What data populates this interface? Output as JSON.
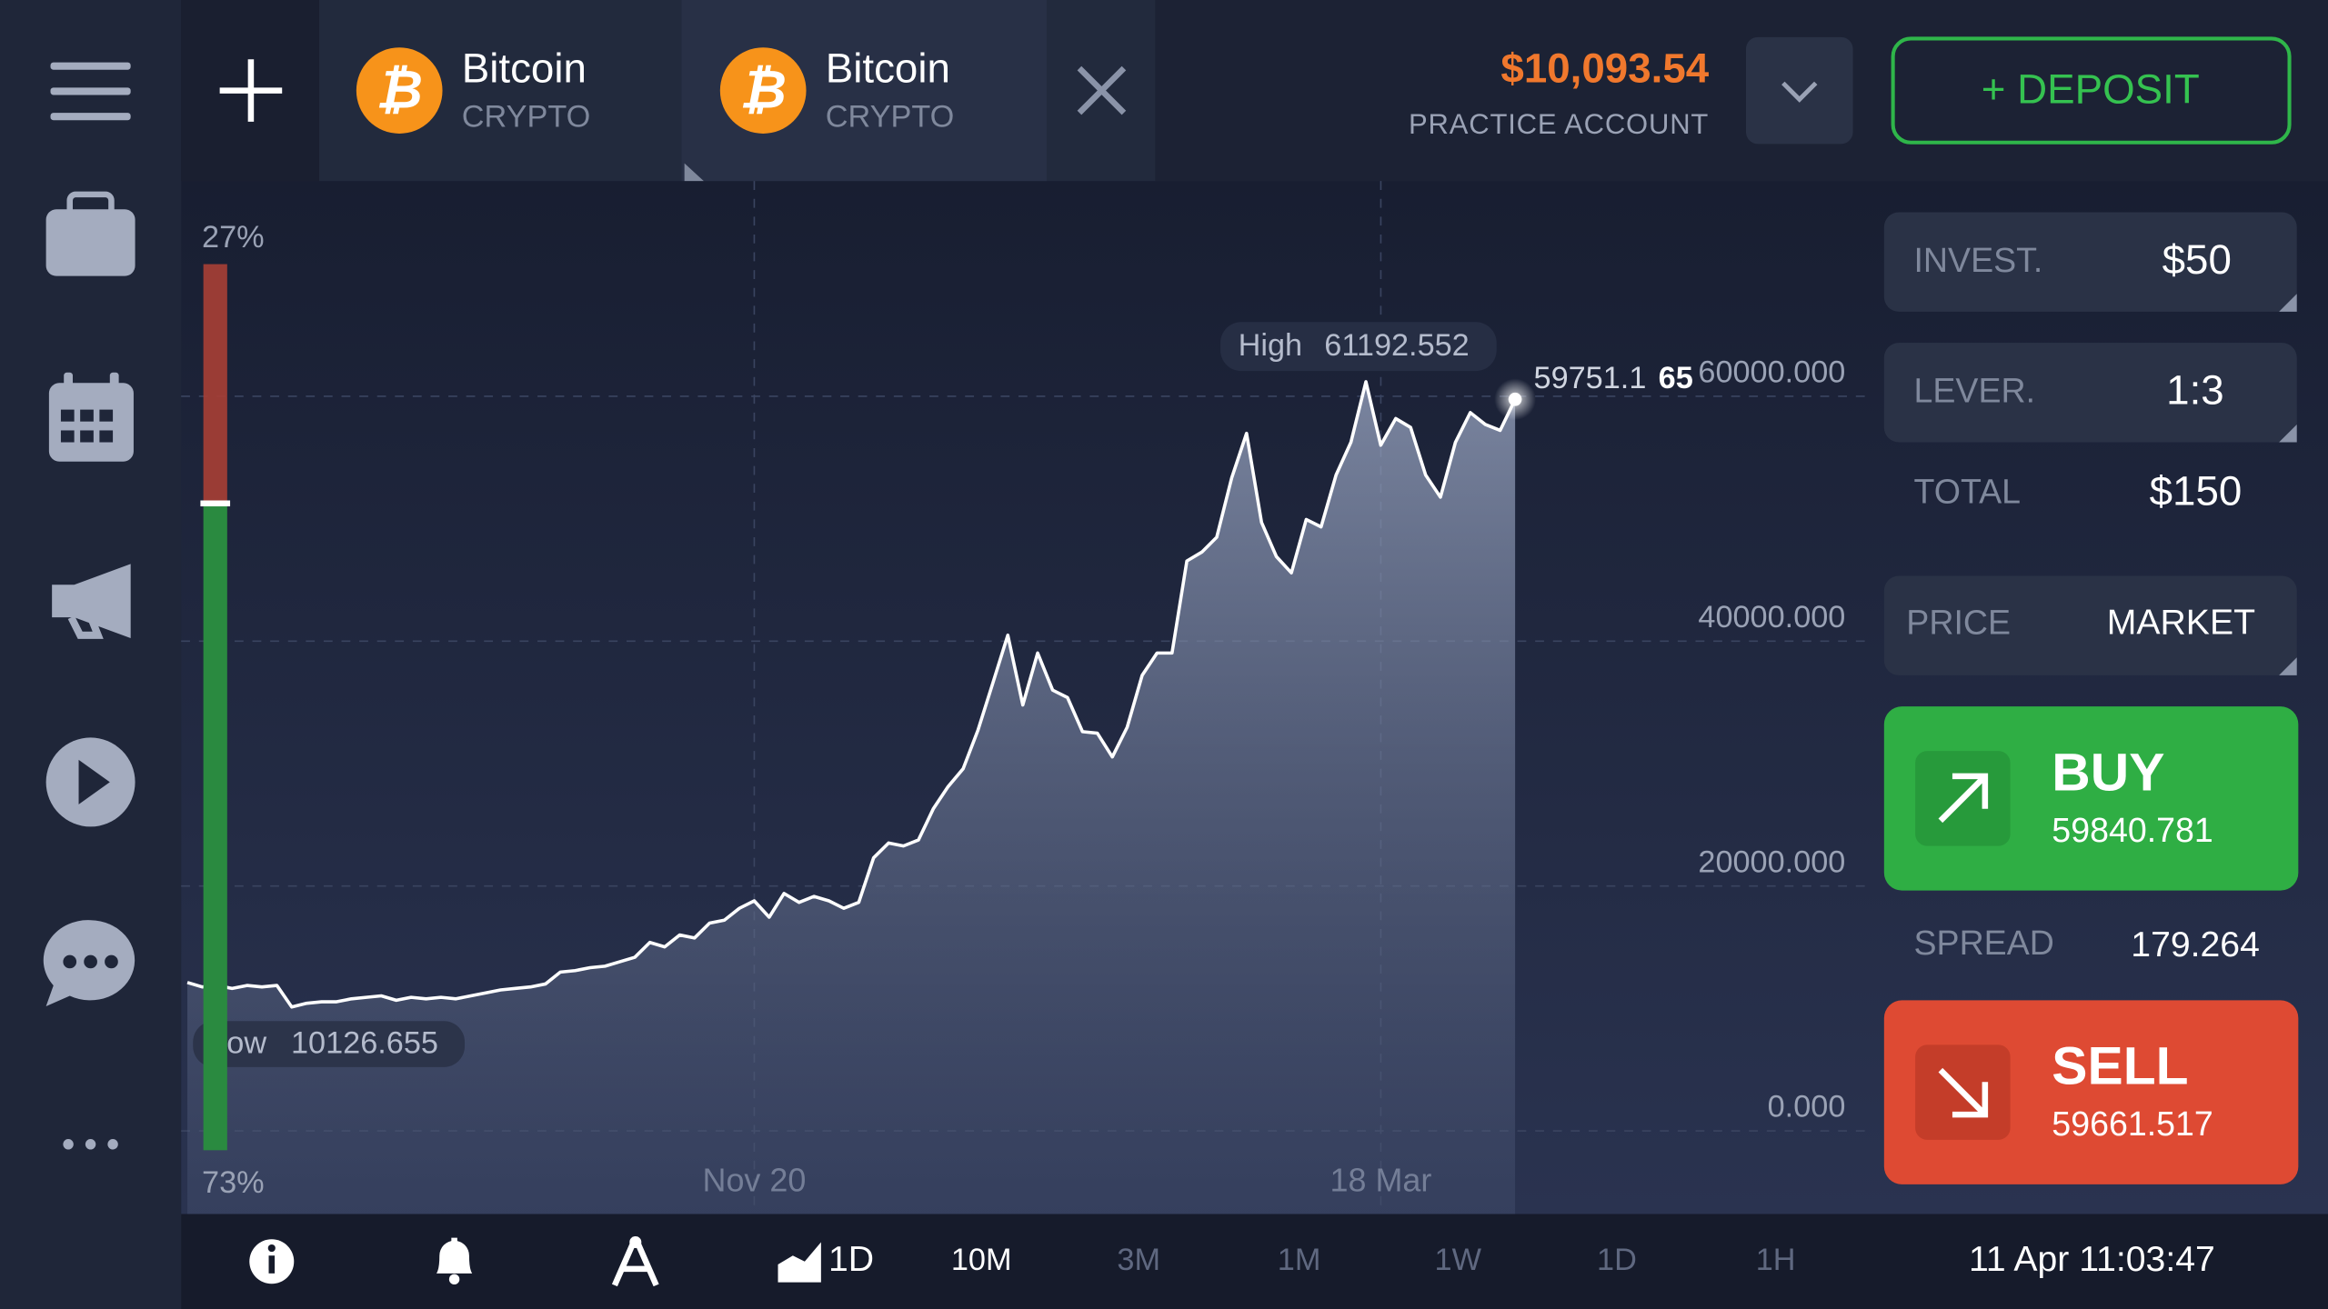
{
  "tabs": [
    {
      "name": "Bitcoin",
      "kind": "CRYPTO"
    },
    {
      "name": "Bitcoin",
      "kind": "CRYPTO"
    }
  ],
  "account": {
    "balance": "$10,093.54",
    "label": "PRACTICE ACCOUNT"
  },
  "deposit": "+ DEPOSIT",
  "chart_data": {
    "type": "area",
    "color": "#ffffff",
    "grid": true,
    "categories": [
      null,
      null,
      null,
      null,
      null,
      null,
      null,
      null,
      null,
      null,
      null,
      null,
      null,
      null,
      null,
      null,
      null,
      null,
      null,
      null,
      null,
      null,
      null,
      null,
      null,
      null,
      null,
      null,
      null,
      null,
      null,
      null,
      null,
      null,
      null,
      null,
      null,
      null,
      "Nov 20",
      null,
      null,
      null,
      null,
      null,
      null,
      null,
      null,
      null,
      null,
      null,
      null,
      null,
      null,
      null,
      null,
      null,
      null,
      null,
      null,
      null,
      null,
      null,
      null,
      null,
      null,
      null,
      null,
      null,
      null,
      null,
      null,
      null,
      null,
      null,
      null,
      null,
      null,
      null,
      null,
      null,
      "18 Mar",
      null,
      null,
      null,
      null,
      null,
      null,
      null,
      null,
      null
    ],
    "values": [
      12121,
      11757,
      11879,
      11636,
      11879,
      11757,
      11879,
      10126.655,
      10424,
      10545,
      10545,
      10788,
      10909,
      11030,
      10666,
      10909,
      10788,
      10909,
      10788,
      11030,
      11273,
      11515,
      11636,
      11757,
      12000,
      12969,
      13091,
      13333,
      13454,
      13818,
      14182,
      15394,
      15030,
      16000,
      15757,
      16969,
      17212,
      18182,
      18788,
      17454,
      19394,
      18666,
      19151,
      18788,
      18182,
      18666,
      22303,
      23515,
      23272,
      23757,
      26303,
      28121,
      29575,
      32727,
      36605,
      40484,
      34787,
      39030,
      36000,
      35393,
      32605,
      32484,
      30545,
      32969,
      37211,
      39030,
      39030,
      46545,
      47272,
      48484,
      53332,
      56969,
      49696,
      46908,
      45575,
      49938,
      49332,
      53575,
      56241,
      61192.552,
      56000,
      58181,
      57454,
      53575,
      51757,
      56241,
      58666,
      57696,
      57211,
      59751.165
    ],
    "ylim": [
      -6788,
      77576
    ],
    "yticks": [
      {
        "value": 0,
        "label": "0.000"
      },
      {
        "value": 20000,
        "label": "20000.000"
      },
      {
        "value": 40000,
        "label": "40000.000"
      },
      {
        "value": 60000,
        "label": "60000.000"
      }
    ],
    "high": {
      "label": "High",
      "value": "61192.552"
    },
    "low": {
      "label": "Low",
      "value": "10126.655"
    },
    "last_label": [
      "59751.1",
      "65"
    ],
    "sentiment": {
      "values": [
        27,
        73
      ],
      "value_labels": [
        "27%",
        "73%"
      ],
      "colors": [
        "#d84a36",
        "#2fae44"
      ]
    }
  },
  "trade": {
    "invest": {
      "label": "INVEST.",
      "value": "$50"
    },
    "leverage": {
      "label": "LEVER.",
      "value": "1:3"
    },
    "total": {
      "label": "TOTAL",
      "value": "$150"
    },
    "price": {
      "label": "PRICE",
      "value": "MARKET"
    },
    "buy": {
      "label": "BUY",
      "price": "59840.781"
    },
    "spread": {
      "label": "SPREAD",
      "value": "179.264"
    },
    "sell": {
      "label": "SELL",
      "price": "59661.517"
    }
  },
  "toolbar": {
    "chart_period": "1D",
    "periods": [
      "10M",
      "3M",
      "1M",
      "1W",
      "1D",
      "1H"
    ],
    "datetime": "11 Apr 11:03:47"
  }
}
